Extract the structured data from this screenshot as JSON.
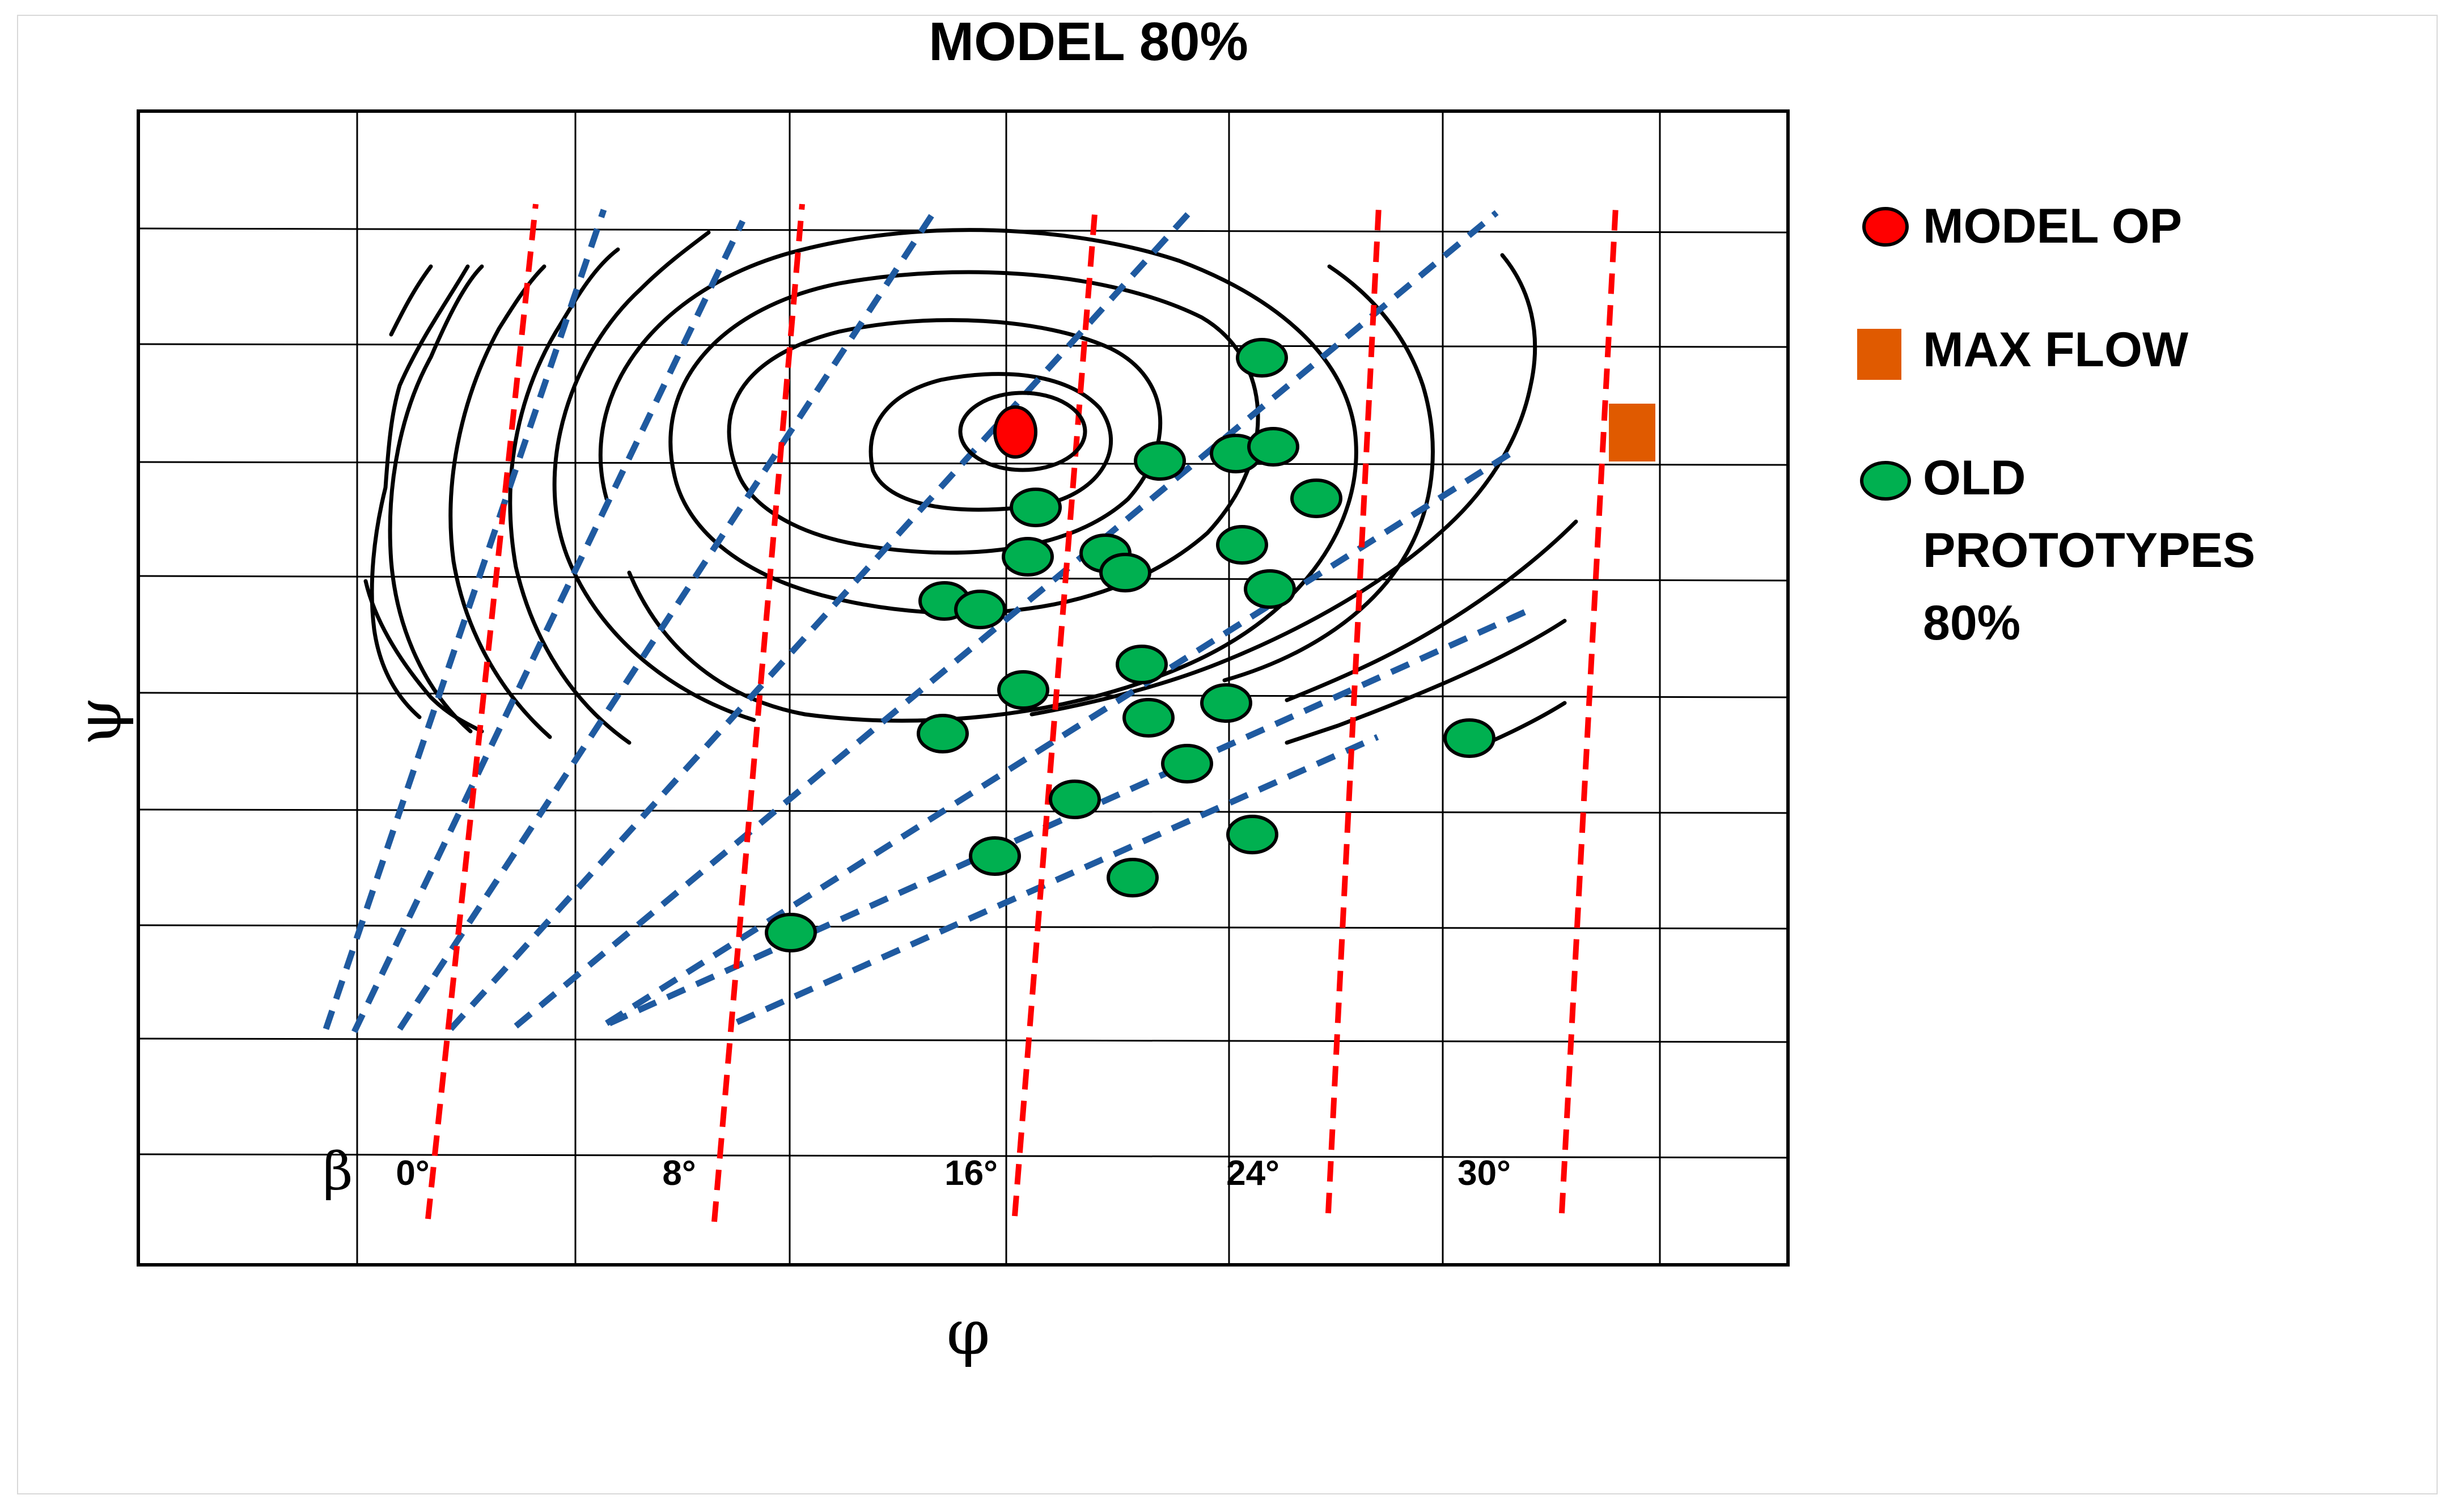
{
  "chart_data": {
    "type": "scatter",
    "title": "MODEL 80%",
    "xlabel": "φ",
    "ylabel": "ψ",
    "beta_symbol": "β",
    "beta_labels": [
      "0°",
      "8°",
      "16°",
      "24°",
      "30°"
    ],
    "legend": [
      {
        "label": "MODEL OP",
        "marker": "ellipse",
        "color": "#ff0000"
      },
      {
        "label": "MAX FLOW",
        "marker": "square",
        "color": "#e05a00"
      },
      {
        "label": "OLD PROTOTYPES 80%",
        "lines": [
          "OLD",
          "PROTOTYPES",
          "80%"
        ],
        "marker": "ellipse",
        "color": "#00b050"
      }
    ],
    "grid": true,
    "colors": {
      "efficiency_contours": "#000000",
      "beta_lines": "#ff0000",
      "flow_lines": "#1f5aa0",
      "model_op": "#ff0000",
      "max_flow": "#e05a00",
      "prototypes": "#00b050"
    }
  }
}
